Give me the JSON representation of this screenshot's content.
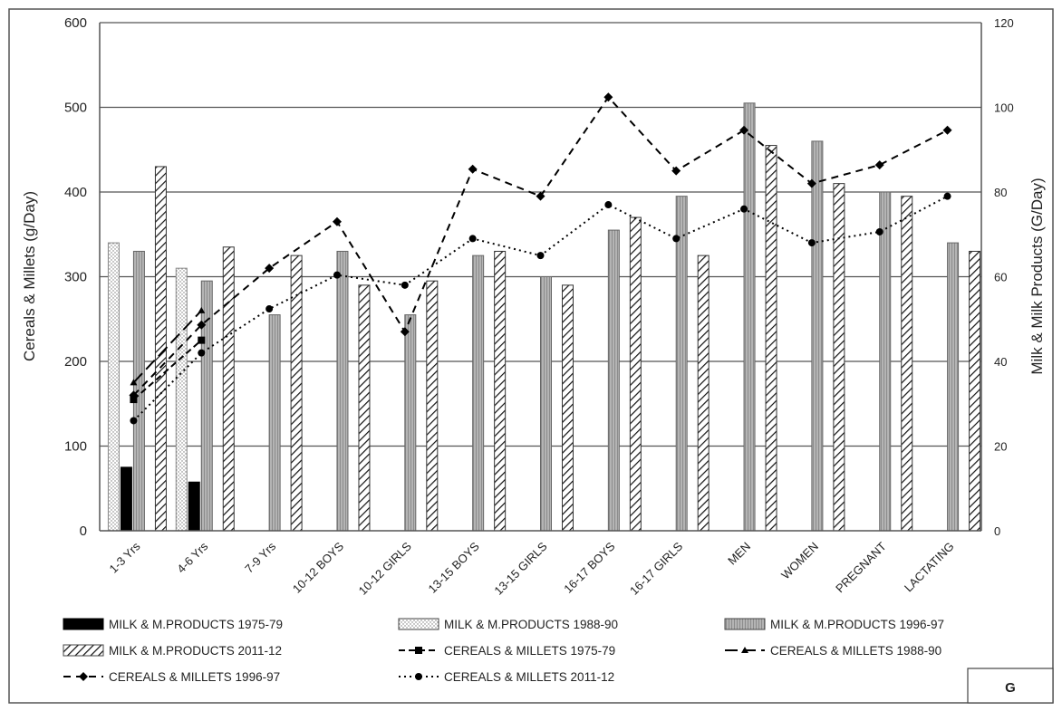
{
  "chart_data": {
    "type": "bar+line",
    "categories": [
      "1-3 Yrs",
      "4-6 Yrs",
      "7-9 Yrs",
      "10-12 BOYS",
      "10-12 GIRLS",
      "13-15 BOYS",
      "13-15 GIRLS",
      "16-17 BOYS",
      "16-17 GIRLS",
      "MEN",
      "WOMEN",
      "PREGNANT",
      "LACTATING"
    ],
    "ylabel_left": "Cereals & Millets (g/Day)",
    "ylabel_right": "Milk & Milk Products (G/Day)",
    "ylim_left": [
      0,
      600
    ],
    "ylim_right": [
      0,
      120
    ],
    "yticks_left": [
      "0",
      "100",
      "200",
      "300",
      "400",
      "500",
      "600"
    ],
    "yticks_right": [
      "0",
      "20",
      "40",
      "60",
      "80",
      "100",
      "120"
    ],
    "grid": true,
    "legend_position": "bottom",
    "panel_label": "G",
    "bar_series": [
      {
        "name": "MILK & M.PRODUCTS 1975-79",
        "axis": "right",
        "pattern": "solid-black",
        "values": [
          15,
          11.5,
          null,
          null,
          null,
          null,
          null,
          null,
          null,
          null,
          null,
          null,
          null
        ]
      },
      {
        "name": "MILK & M.PRODUCTS 1988-90",
        "axis": "right",
        "pattern": "dotted",
        "values": [
          68,
          62,
          null,
          null,
          null,
          null,
          null,
          null,
          null,
          null,
          null,
          null,
          null
        ]
      },
      {
        "name": "MILK & M.PRODUCTS 1996-97",
        "axis": "right",
        "pattern": "gray",
        "values": [
          66,
          59,
          51,
          66,
          51,
          65,
          60,
          71,
          79,
          101,
          92,
          80,
          68
        ]
      },
      {
        "name": "MILK & M.PRODUCTS 2011-12",
        "axis": "right",
        "pattern": "hatch",
        "values": [
          86,
          67,
          65,
          58,
          59,
          66,
          58,
          74,
          65,
          91,
          82,
          79,
          66
        ]
      }
    ],
    "line_series": [
      {
        "name": "CEREALS & MILLETS 1975-79",
        "axis": "left",
        "style": "dash-square",
        "values": [
          155,
          225,
          null,
          null,
          null,
          null,
          null,
          null,
          null,
          null,
          null,
          null,
          null
        ]
      },
      {
        "name": "CEREALS & MILLETS 1988-90",
        "axis": "left",
        "style": "longdash-triangle",
        "values": [
          175,
          260,
          null,
          null,
          null,
          null,
          null,
          null,
          null,
          null,
          null,
          null,
          null
        ]
      },
      {
        "name": "CEREALS & MILLETS 1996-97",
        "axis": "left",
        "style": "dash-diamond",
        "values": [
          160,
          243,
          310,
          365,
          235,
          427,
          395,
          512,
          425,
          473,
          410,
          432,
          473
        ]
      },
      {
        "name": "CEREALS & MILLETS 2011-12",
        "axis": "left",
        "style": "dot-circle",
        "values": [
          130,
          210,
          262,
          302,
          290,
          345,
          325,
          385,
          345,
          380,
          340,
          353,
          395
        ]
      }
    ]
  }
}
